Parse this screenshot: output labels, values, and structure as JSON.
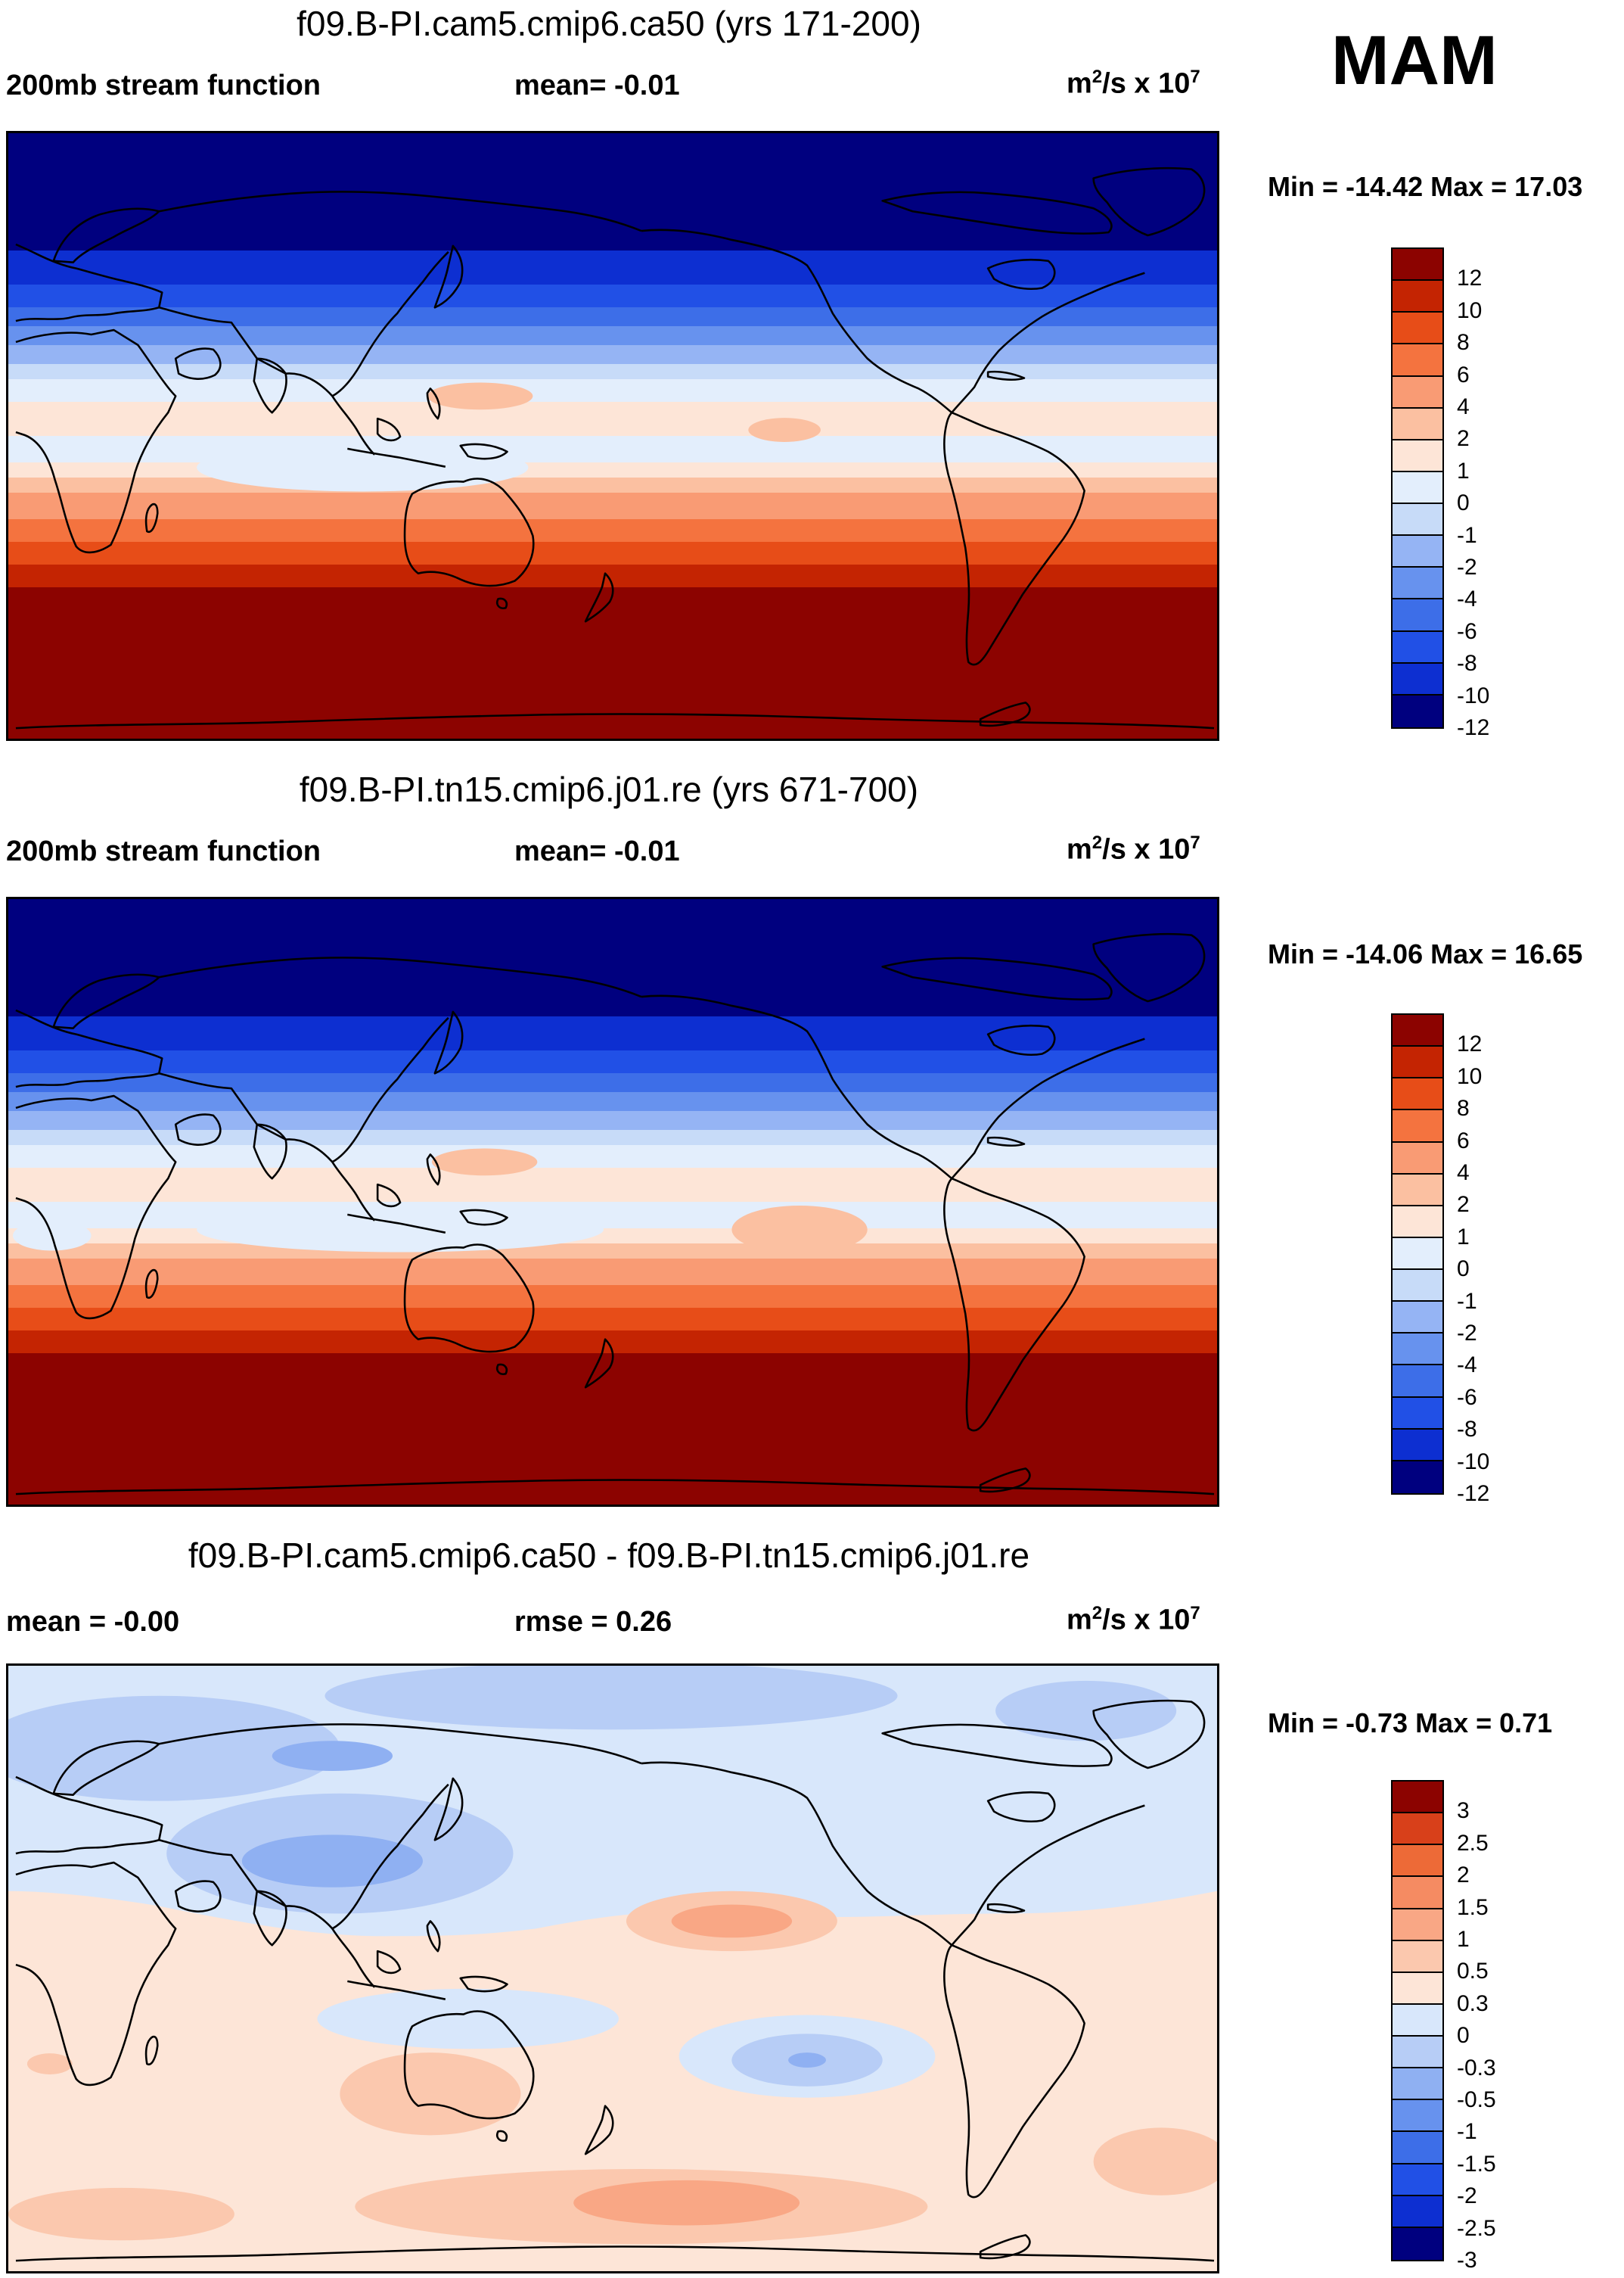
{
  "season": "MAM",
  "colors": {
    "land_line": "#000000",
    "scale_main": [
      "#00007f",
      "#0d2fd1",
      "#2150e6",
      "#3d6ee8",
      "#6792ee",
      "#95b4f4",
      "#c7dbf8",
      "#e3eefc",
      "#fde5d7",
      "#fbc0a1",
      "#f99b74",
      "#f4733f",
      "#e74d18",
      "#c42402",
      "#8c0300"
    ],
    "scale_diff": [
      "#00007f",
      "#0d2fd1",
      "#2150e6",
      "#3d6ee8",
      "#6792ee",
      "#8fb0f2",
      "#b7cdf6",
      "#d8e7fb",
      "#fde5d7",
      "#fbc8ae",
      "#f9a785",
      "#f58b62",
      "#ed6a37",
      "#d8401a",
      "#8c0300"
    ]
  },
  "panels": [
    {
      "title": "f09.B-PI.cam5.cmip6.ca50 (yrs 171-200)",
      "left_label": "200mb stream function",
      "center_label": "mean=  -0.01",
      "units": {
        "base": "m",
        "sup1": "2",
        "mid": "/s x 10",
        "sup2": "7"
      },
      "minmax": "Min = -14.42 Max =  17.03"
    },
    {
      "title": "f09.B-PI.tn15.cmip6.j01.re (yrs 671-700)",
      "left_label": "200mb stream function",
      "center_label": "mean=  -0.01",
      "units": {
        "base": "m",
        "sup1": "2",
        "mid": "/s x 10",
        "sup2": "7"
      },
      "minmax": "Min = -14.06 Max =  16.65"
    },
    {
      "title": "f09.B-PI.cam5.cmip6.ca50 - f09.B-PI.tn15.cmip6.j01.re",
      "left_label": "mean =  -0.00",
      "center_label": "rmse =   0.26",
      "units": {
        "base": "m",
        "sup1": "2",
        "mid": "/s x 10",
        "sup2": "7"
      },
      "minmax": "Min =  -0.73 Max =   0.71"
    }
  ],
  "chart_data": [
    {
      "type": "heatmap",
      "title": "f09.B-PI.cam5.cmip6.ca50 (yrs 171-200)",
      "variable": "200mb stream function",
      "units": "m2/s x 10^7",
      "mean": -0.01,
      "min": -14.42,
      "max": 17.03,
      "levels": [
        -12,
        -10,
        -8,
        -6,
        -4,
        -2,
        -1,
        0,
        1,
        2,
        4,
        6,
        8,
        10,
        12
      ],
      "level_labels": [
        "12",
        "10",
        "8",
        "6",
        "4",
        "2",
        "1",
        "0",
        "-1",
        "-2",
        "-4",
        "-6",
        "-8",
        "-10",
        "-12"
      ],
      "zonal_profile": {
        "lat": [
          90,
          70,
          55,
          45,
          35,
          25,
          15,
          5,
          -5,
          -15,
          -25,
          -35,
          -45,
          -55,
          -70,
          -90
        ],
        "value": [
          -13,
          -13,
          -12,
          -10,
          -7,
          -3,
          -0.5,
          0.5,
          -0.5,
          1.5,
          4,
          7,
          10,
          12,
          13,
          13
        ]
      }
    },
    {
      "type": "heatmap",
      "title": "f09.B-PI.tn15.cmip6.j01.re (yrs 671-700)",
      "variable": "200mb stream function",
      "units": "m2/s x 10^7",
      "mean": -0.01,
      "min": -14.06,
      "max": 16.65,
      "levels": [
        -12,
        -10,
        -8,
        -6,
        -4,
        -2,
        -1,
        0,
        1,
        2,
        4,
        6,
        8,
        10,
        12
      ],
      "level_labels": [
        "12",
        "10",
        "8",
        "6",
        "4",
        "2",
        "1",
        "0",
        "-1",
        "-2",
        "-4",
        "-6",
        "-8",
        "-10",
        "-12"
      ],
      "zonal_profile": {
        "lat": [
          90,
          70,
          55,
          45,
          35,
          25,
          15,
          5,
          -5,
          -15,
          -25,
          -35,
          -45,
          -55,
          -70,
          -90
        ],
        "value": [
          -13,
          -13,
          -12,
          -10,
          -7,
          -3,
          -0.5,
          0.5,
          -0.5,
          1.5,
          4,
          7,
          10,
          12,
          13,
          13
        ]
      }
    },
    {
      "type": "heatmap",
      "title": "f09.B-PI.cam5.cmip6.ca50 - f09.B-PI.tn15.cmip6.j01.re",
      "units": "m2/s x 10^7",
      "mean": -0.0,
      "rmse": 0.26,
      "min": -0.73,
      "max": 0.71,
      "levels": [
        -3,
        -2.5,
        -2,
        -1.5,
        -1,
        -0.5,
        -0.3,
        0,
        0.3,
        0.5,
        1,
        1.5,
        2,
        2.5,
        3
      ],
      "level_labels": [
        "3",
        "2.5",
        "2",
        "1.5",
        "1",
        "0.5",
        "0.3",
        "0",
        "-0.3",
        "-0.5",
        "-1",
        "-1.5",
        "-2",
        "-2.5",
        "-3"
      ]
    }
  ]
}
